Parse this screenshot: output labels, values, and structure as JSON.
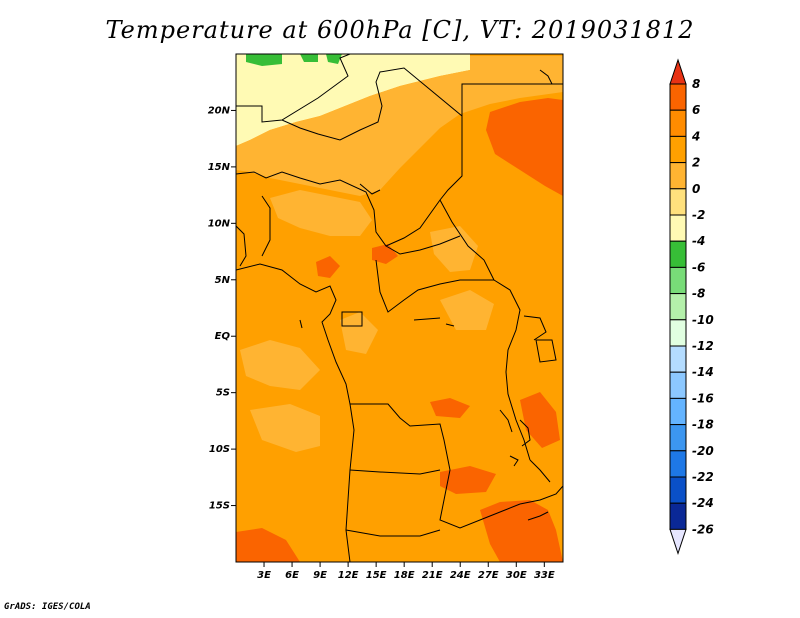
{
  "title": "Temperature at 600hPa [C], VT: 2019031812",
  "credit": "GrADS: IGES/COLA",
  "map": {
    "lat_ticks": [
      "20N",
      "15N",
      "10N",
      "5N",
      "EQ",
      "5S",
      "10S",
      "15S"
    ],
    "lon_ticks": [
      "3E",
      "6E",
      "9E",
      "12E",
      "15E",
      "18E",
      "21E",
      "24E",
      "27E",
      "30E",
      "33E"
    ],
    "lon_range_deg": [
      0,
      35
    ],
    "lat_range_deg": [
      -20,
      25
    ]
  },
  "colorbar": {
    "labels": [
      "8",
      "6",
      "4",
      "2",
      "0",
      "-2",
      "-4",
      "-6",
      "-8",
      "-10",
      "-12",
      "-14",
      "-16",
      "-18",
      "-20",
      "-22",
      "-24",
      "-26"
    ],
    "colors": [
      "#e83214",
      "#fa6400",
      "#ff8c00",
      "#ffa000",
      "#ffb432",
      "#ffe17d",
      "#fffab4",
      "#37be37",
      "#78dc78",
      "#b4f0aa",
      "#e1ffe1",
      "#b4dcff",
      "#8cc8ff",
      "#64b4ff",
      "#3c96f0",
      "#1e78e6",
      "#0a50c8",
      "#0a2896",
      "#0a0a5a",
      "#e6e6ff"
    ]
  }
}
